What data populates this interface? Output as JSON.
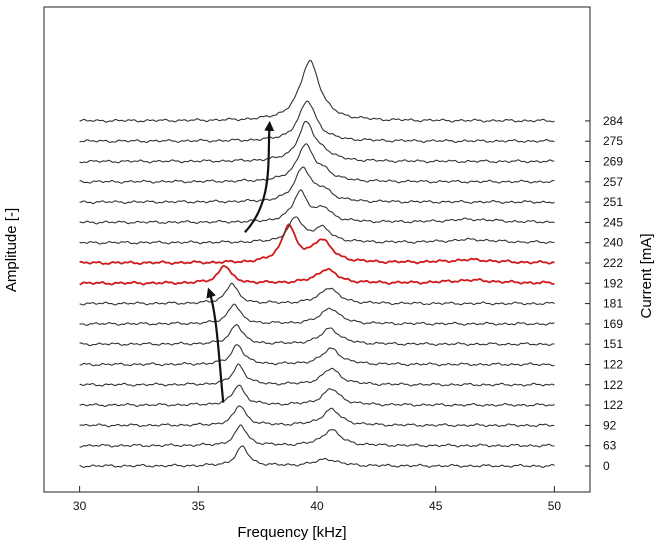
{
  "chart_data": {
    "type": "line",
    "title": "",
    "xlabel": "Frequency [kHz]",
    "ylabel_left": "Amplitude [-]",
    "ylabel_right": "Current [mA]",
    "xlim": [
      28.5,
      51.5
    ],
    "x_ticks": [
      30,
      35,
      40,
      45,
      50
    ],
    "x_tick_labels": [
      "30",
      "35",
      "40",
      "45",
      "50"
    ],
    "grid": false,
    "legend": "none",
    "colors": {
      "normal": "#333333",
      "highlight": "#d11a1a",
      "arrow": "#111111"
    },
    "x_range_traces": [
      30,
      50
    ],
    "series": [
      {
        "name": "0",
        "highlight": false,
        "peaks": [
          {
            "f": 36.85,
            "a": 0.95,
            "w": 0.32
          },
          {
            "f": 40.4,
            "a": 0.35,
            "w": 0.55
          }
        ]
      },
      {
        "name": "63",
        "highlight": false,
        "peaks": [
          {
            "f": 36.8,
            "a": 1.0,
            "w": 0.3
          },
          {
            "f": 40.6,
            "a": 0.8,
            "w": 0.45
          }
        ]
      },
      {
        "name": "92",
        "highlight": false,
        "peaks": [
          {
            "f": 36.75,
            "a": 1.0,
            "w": 0.3
          },
          {
            "f": 40.6,
            "a": 0.8,
            "w": 0.45
          }
        ]
      },
      {
        "name": "122",
        "highlight": false,
        "peaks": [
          {
            "f": 36.7,
            "a": 1.0,
            "w": 0.3
          },
          {
            "f": 40.6,
            "a": 0.8,
            "w": 0.45
          }
        ]
      },
      {
        "name": "122",
        "highlight": false,
        "peaks": [
          {
            "f": 36.7,
            "a": 1.0,
            "w": 0.3
          },
          {
            "f": 40.6,
            "a": 0.8,
            "w": 0.45
          }
        ]
      },
      {
        "name": "122",
        "highlight": false,
        "peaks": [
          {
            "f": 36.65,
            "a": 1.0,
            "w": 0.3
          },
          {
            "f": 40.6,
            "a": 0.8,
            "w": 0.45
          }
        ]
      },
      {
        "name": "151",
        "highlight": false,
        "peaks": [
          {
            "f": 36.6,
            "a": 1.0,
            "w": 0.3
          },
          {
            "f": 40.55,
            "a": 0.8,
            "w": 0.45
          }
        ]
      },
      {
        "name": "169",
        "highlight": false,
        "peaks": [
          {
            "f": 36.5,
            "a": 1.0,
            "w": 0.3
          },
          {
            "f": 40.55,
            "a": 0.8,
            "w": 0.45
          }
        ]
      },
      {
        "name": "181",
        "highlight": false,
        "peaks": [
          {
            "f": 36.4,
            "a": 1.0,
            "w": 0.3
          },
          {
            "f": 40.5,
            "a": 0.8,
            "w": 0.45
          }
        ]
      },
      {
        "name": "192",
        "highlight": true,
        "peaks": [
          {
            "f": 36.1,
            "a": 0.9,
            "w": 0.3
          },
          {
            "f": 40.4,
            "a": 0.7,
            "w": 0.5
          },
          {
            "f": 46.5,
            "a": 0.15,
            "w": 1.2
          }
        ]
      },
      {
        "name": "222",
        "highlight": true,
        "peaks": [
          {
            "f": 38.8,
            "a": 1.8,
            "w": 0.35
          },
          {
            "f": 40.2,
            "a": 1.1,
            "w": 0.5
          },
          {
            "f": 46.5,
            "a": 0.15,
            "w": 1.2
          }
        ]
      },
      {
        "name": "240",
        "highlight": false,
        "peaks": [
          {
            "f": 39.1,
            "a": 1.2,
            "w": 0.35
          },
          {
            "f": 40.2,
            "a": 0.7,
            "w": 0.45
          },
          {
            "f": 46.5,
            "a": 0.15,
            "w": 1.2
          }
        ]
      },
      {
        "name": "245",
        "highlight": false,
        "peaks": [
          {
            "f": 39.3,
            "a": 1.5,
            "w": 0.38
          },
          {
            "f": 40.3,
            "a": 0.6,
            "w": 0.4
          },
          {
            "f": 46.5,
            "a": 0.15,
            "w": 1.2
          }
        ]
      },
      {
        "name": "251",
        "highlight": false,
        "peaks": [
          {
            "f": 39.4,
            "a": 1.7,
            "w": 0.4
          },
          {
            "f": 40.3,
            "a": 0.5,
            "w": 0.4
          }
        ]
      },
      {
        "name": "257",
        "highlight": false,
        "peaks": [
          {
            "f": 39.5,
            "a": 1.8,
            "w": 0.42
          },
          {
            "f": 40.3,
            "a": 0.4,
            "w": 0.4
          }
        ]
      },
      {
        "name": "269",
        "highlight": false,
        "peaks": [
          {
            "f": 39.55,
            "a": 1.9,
            "w": 0.42
          },
          {
            "f": 40.3,
            "a": 0.3,
            "w": 0.4
          }
        ]
      },
      {
        "name": "275",
        "highlight": false,
        "peaks": [
          {
            "f": 39.6,
            "a": 2.0,
            "w": 0.45
          }
        ]
      },
      {
        "name": "284",
        "highlight": false,
        "peaks": [
          {
            "f": 39.7,
            "a": 3.0,
            "w": 0.5
          }
        ]
      }
    ],
    "annotations": [
      {
        "type": "arrow",
        "description": "shift of lower-frequency peak with increasing current",
        "from": {
          "f": 35.8,
          "trace": 3
        },
        "to": {
          "f": 35.8,
          "trace": 9
        }
      },
      {
        "type": "arrow",
        "description": "shift of higher-frequency peak with increasing current",
        "from": {
          "f": 37.3,
          "trace": 11
        },
        "to": {
          "f": 38.0,
          "trace": 17
        }
      }
    ]
  }
}
